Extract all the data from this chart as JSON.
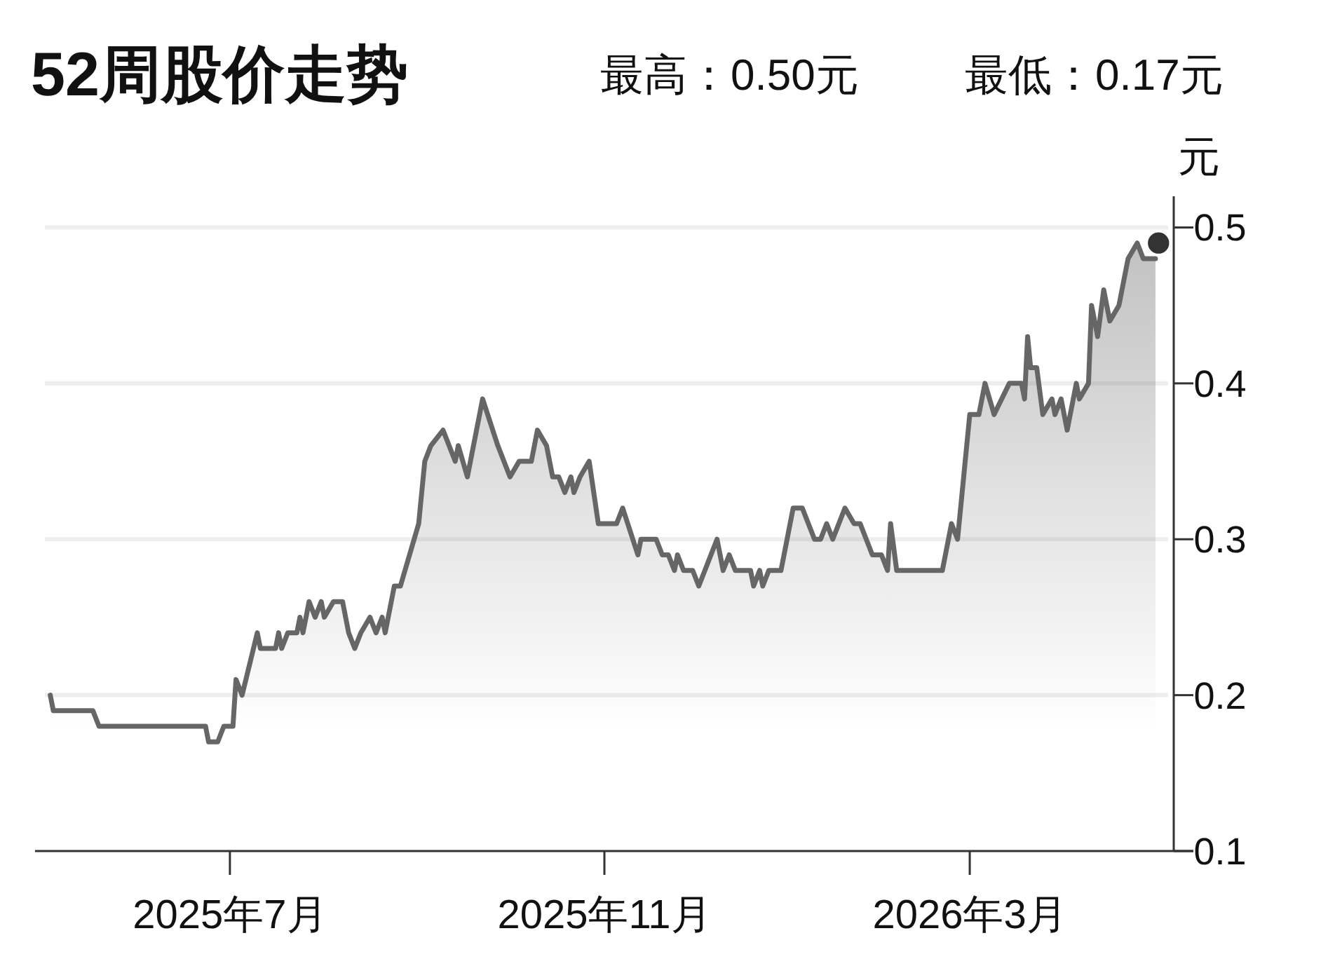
{
  "chart_data": {
    "type": "area",
    "title": "52周股价走势",
    "annotations": [
      "最高：0.50元",
      "最低：0.17元"
    ],
    "ylabel": "元",
    "xlim": [
      "2025-04-28",
      "2026-05-07"
    ],
    "xticks": [
      {
        "value": "2025-07-01",
        "label": "2025年7月"
      },
      {
        "value": "2025-11-01",
        "label": "2025年11月"
      },
      {
        "value": "2026-03-01",
        "label": "2026年3月"
      }
    ],
    "ylim": [
      0.1,
      0.52
    ],
    "yticks": [
      0.1,
      0.2,
      0.3,
      0.4,
      0.5
    ],
    "grid": "y",
    "series": [
      {
        "color": "#666666",
        "x": [
          "2025-05-03",
          "2025-05-04",
          "2025-05-17",
          "2025-05-19",
          "2025-06-23",
          "2025-06-24",
          "2025-06-27",
          "2025-06-29",
          "2025-07-02",
          "2025-07-03",
          "2025-07-05",
          "2025-07-10",
          "2025-07-11",
          "2025-07-16",
          "2025-07-17",
          "2025-07-18",
          "2025-07-20",
          "2025-07-23",
          "2025-07-24",
          "2025-07-25",
          "2025-07-27",
          "2025-07-29",
          "2025-07-31",
          "2025-08-01",
          "2025-08-04",
          "2025-08-07",
          "2025-08-09",
          "2025-08-11",
          "2025-08-13",
          "2025-08-16",
          "2025-08-18",
          "2025-08-20",
          "2025-08-21",
          "2025-08-24",
          "2025-08-26",
          "2025-09-01",
          "2025-09-03",
          "2025-09-05",
          "2025-09-09",
          "2025-09-13",
          "2025-09-14",
          "2025-09-17",
          "2025-09-22",
          "2025-09-27",
          "2025-10-01",
          "2025-10-04",
          "2025-10-08",
          "2025-10-10",
          "2025-10-13",
          "2025-10-15",
          "2025-10-17",
          "2025-10-19",
          "2025-10-21",
          "2025-10-22",
          "2025-10-24",
          "2025-10-27",
          "2025-10-30",
          "2025-11-05",
          "2025-11-07",
          "2025-11-12",
          "2025-11-13",
          "2025-11-18",
          "2025-11-20",
          "2025-11-22",
          "2025-11-24",
          "2025-11-25",
          "2025-11-27",
          "2025-11-30",
          "2025-12-02",
          "2025-12-04",
          "2025-12-08",
          "2025-12-10",
          "2025-12-12",
          "2025-12-14",
          "2025-12-19",
          "2025-12-20",
          "2025-12-22",
          "2025-12-23",
          "2025-12-25",
          "2025-12-29",
          "2026-01-02",
          "2026-01-05",
          "2026-01-07",
          "2026-01-09",
          "2026-01-11",
          "2026-01-13",
          "2026-01-15",
          "2026-01-19",
          "2026-01-22",
          "2026-01-24",
          "2026-01-28",
          "2026-01-31",
          "2026-02-02",
          "2026-02-03",
          "2026-02-05",
          "2026-02-20",
          "2026-02-23",
          "2026-02-25",
          "2026-03-01",
          "2026-03-04",
          "2026-03-06",
          "2026-03-09",
          "2026-03-14",
          "2026-03-18",
          "2026-03-19",
          "2026-03-20",
          "2026-03-21",
          "2026-03-23",
          "2026-03-25",
          "2026-03-28",
          "2026-03-29",
          "2026-03-31",
          "2026-04-02",
          "2026-04-05",
          "2026-04-06",
          "2026-04-09",
          "2026-04-10",
          "2026-04-12",
          "2026-04-14",
          "2026-04-16",
          "2026-04-19",
          "2026-04-22",
          "2026-04-25",
          "2026-04-27",
          "2026-05-01"
        ],
        "values": [
          0.2,
          0.19,
          0.19,
          0.18,
          0.18,
          0.17,
          0.17,
          0.18,
          0.18,
          0.21,
          0.2,
          0.24,
          0.23,
          0.23,
          0.24,
          0.23,
          0.24,
          0.24,
          0.25,
          0.24,
          0.26,
          0.25,
          0.26,
          0.25,
          0.26,
          0.26,
          0.24,
          0.23,
          0.24,
          0.25,
          0.24,
          0.25,
          0.24,
          0.27,
          0.27,
          0.31,
          0.35,
          0.36,
          0.37,
          0.35,
          0.36,
          0.34,
          0.39,
          0.36,
          0.34,
          0.35,
          0.35,
          0.37,
          0.36,
          0.34,
          0.34,
          0.33,
          0.34,
          0.33,
          0.34,
          0.35,
          0.31,
          0.31,
          0.32,
          0.29,
          0.3,
          0.3,
          0.29,
          0.29,
          0.28,
          0.29,
          0.28,
          0.28,
          0.27,
          0.28,
          0.3,
          0.28,
          0.29,
          0.28,
          0.28,
          0.27,
          0.28,
          0.27,
          0.28,
          0.28,
          0.32,
          0.32,
          0.31,
          0.3,
          0.3,
          0.31,
          0.3,
          0.32,
          0.31,
          0.31,
          0.29,
          0.29,
          0.28,
          0.31,
          0.28,
          0.28,
          0.31,
          0.3,
          0.38,
          0.38,
          0.4,
          0.38,
          0.4,
          0.4,
          0.39,
          0.43,
          0.41,
          0.41,
          0.38,
          0.39,
          0.38,
          0.39,
          0.37,
          0.4,
          0.39,
          0.4,
          0.45,
          0.43,
          0.46,
          0.44,
          0.45,
          0.48,
          0.49,
          0.48,
          0.48
        ]
      },
      {
        "type": "scatter",
        "color": "#333333",
        "marker": "circle",
        "x": [
          "2026-05-02"
        ],
        "values": [
          0.49
        ]
      }
    ]
  }
}
